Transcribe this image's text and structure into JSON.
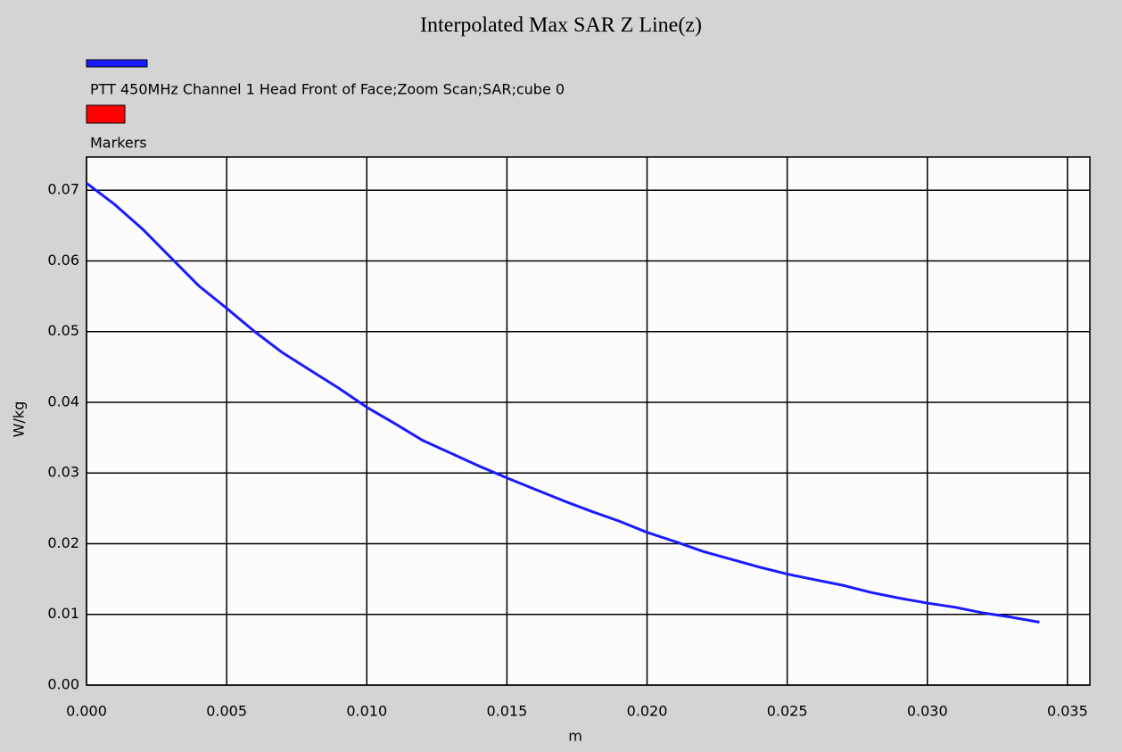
{
  "chart_data": {
    "type": "line",
    "title": "Interpolated Max SAR Z Line(z)",
    "x_label": "m",
    "y_label": "W/kg",
    "x": [
      0,
      0.001,
      0.002,
      0.003,
      0.004,
      0.005,
      0.006,
      0.007,
      0.008,
      0.009,
      0.01,
      0.011,
      0.012,
      0.013,
      0.014,
      0.015,
      0.016,
      0.017,
      0.018,
      0.019,
      0.02,
      0.021,
      0.022,
      0.023,
      0.024,
      0.025,
      0.026,
      0.027,
      0.028,
      0.029,
      0.03,
      0.031,
      0.032,
      0.033,
      0.034
    ],
    "series": [
      {
        "name": "PTT 450MHz Channel 1 Head Front of Face;Zoom Scan;SAR;cube 0",
        "color": "#1a1aff",
        "values": [
          0.071,
          0.068,
          0.0645,
          0.0605,
          0.0565,
          0.0533,
          0.05,
          0.047,
          0.0445,
          0.042,
          0.0393,
          0.037,
          0.0346,
          0.0328,
          0.031,
          0.0293,
          0.0277,
          0.0261,
          0.0246,
          0.0232,
          0.0216,
          0.0203,
          0.0189,
          0.0178,
          0.0167,
          0.0157,
          0.0149,
          0.0141,
          0.0131,
          0.0123,
          0.0116,
          0.011,
          0.0102,
          0.0096,
          0.0089
        ]
      }
    ],
    "markers": {
      "name": "Markers",
      "color": "#ff0000"
    },
    "xlim": [
      0,
      0.0358
    ],
    "ylim": [
      0,
      0.0747
    ],
    "xticks": [
      {
        "value": 0,
        "label": "0.000"
      },
      {
        "value": 0.005,
        "label": "0.005"
      },
      {
        "value": 0.01,
        "label": "0.010"
      },
      {
        "value": 0.015,
        "label": "0.015"
      },
      {
        "value": 0.02,
        "label": "0.020"
      },
      {
        "value": 0.025,
        "label": "0.025"
      },
      {
        "value": 0.03,
        "label": "0.030"
      },
      {
        "value": 0.035,
        "label": "0.035"
      }
    ],
    "yticks": [
      {
        "value": 0,
        "label": "0.00"
      },
      {
        "value": 0.01,
        "label": "0.01"
      },
      {
        "value": 0.02,
        "label": "0.02"
      },
      {
        "value": 0.03,
        "label": "0.03"
      },
      {
        "value": 0.04,
        "label": "0.04"
      },
      {
        "value": 0.05,
        "label": "0.05"
      },
      {
        "value": 0.06,
        "label": "0.06"
      },
      {
        "value": 0.07,
        "label": "0.07"
      }
    ],
    "grid": true
  }
}
